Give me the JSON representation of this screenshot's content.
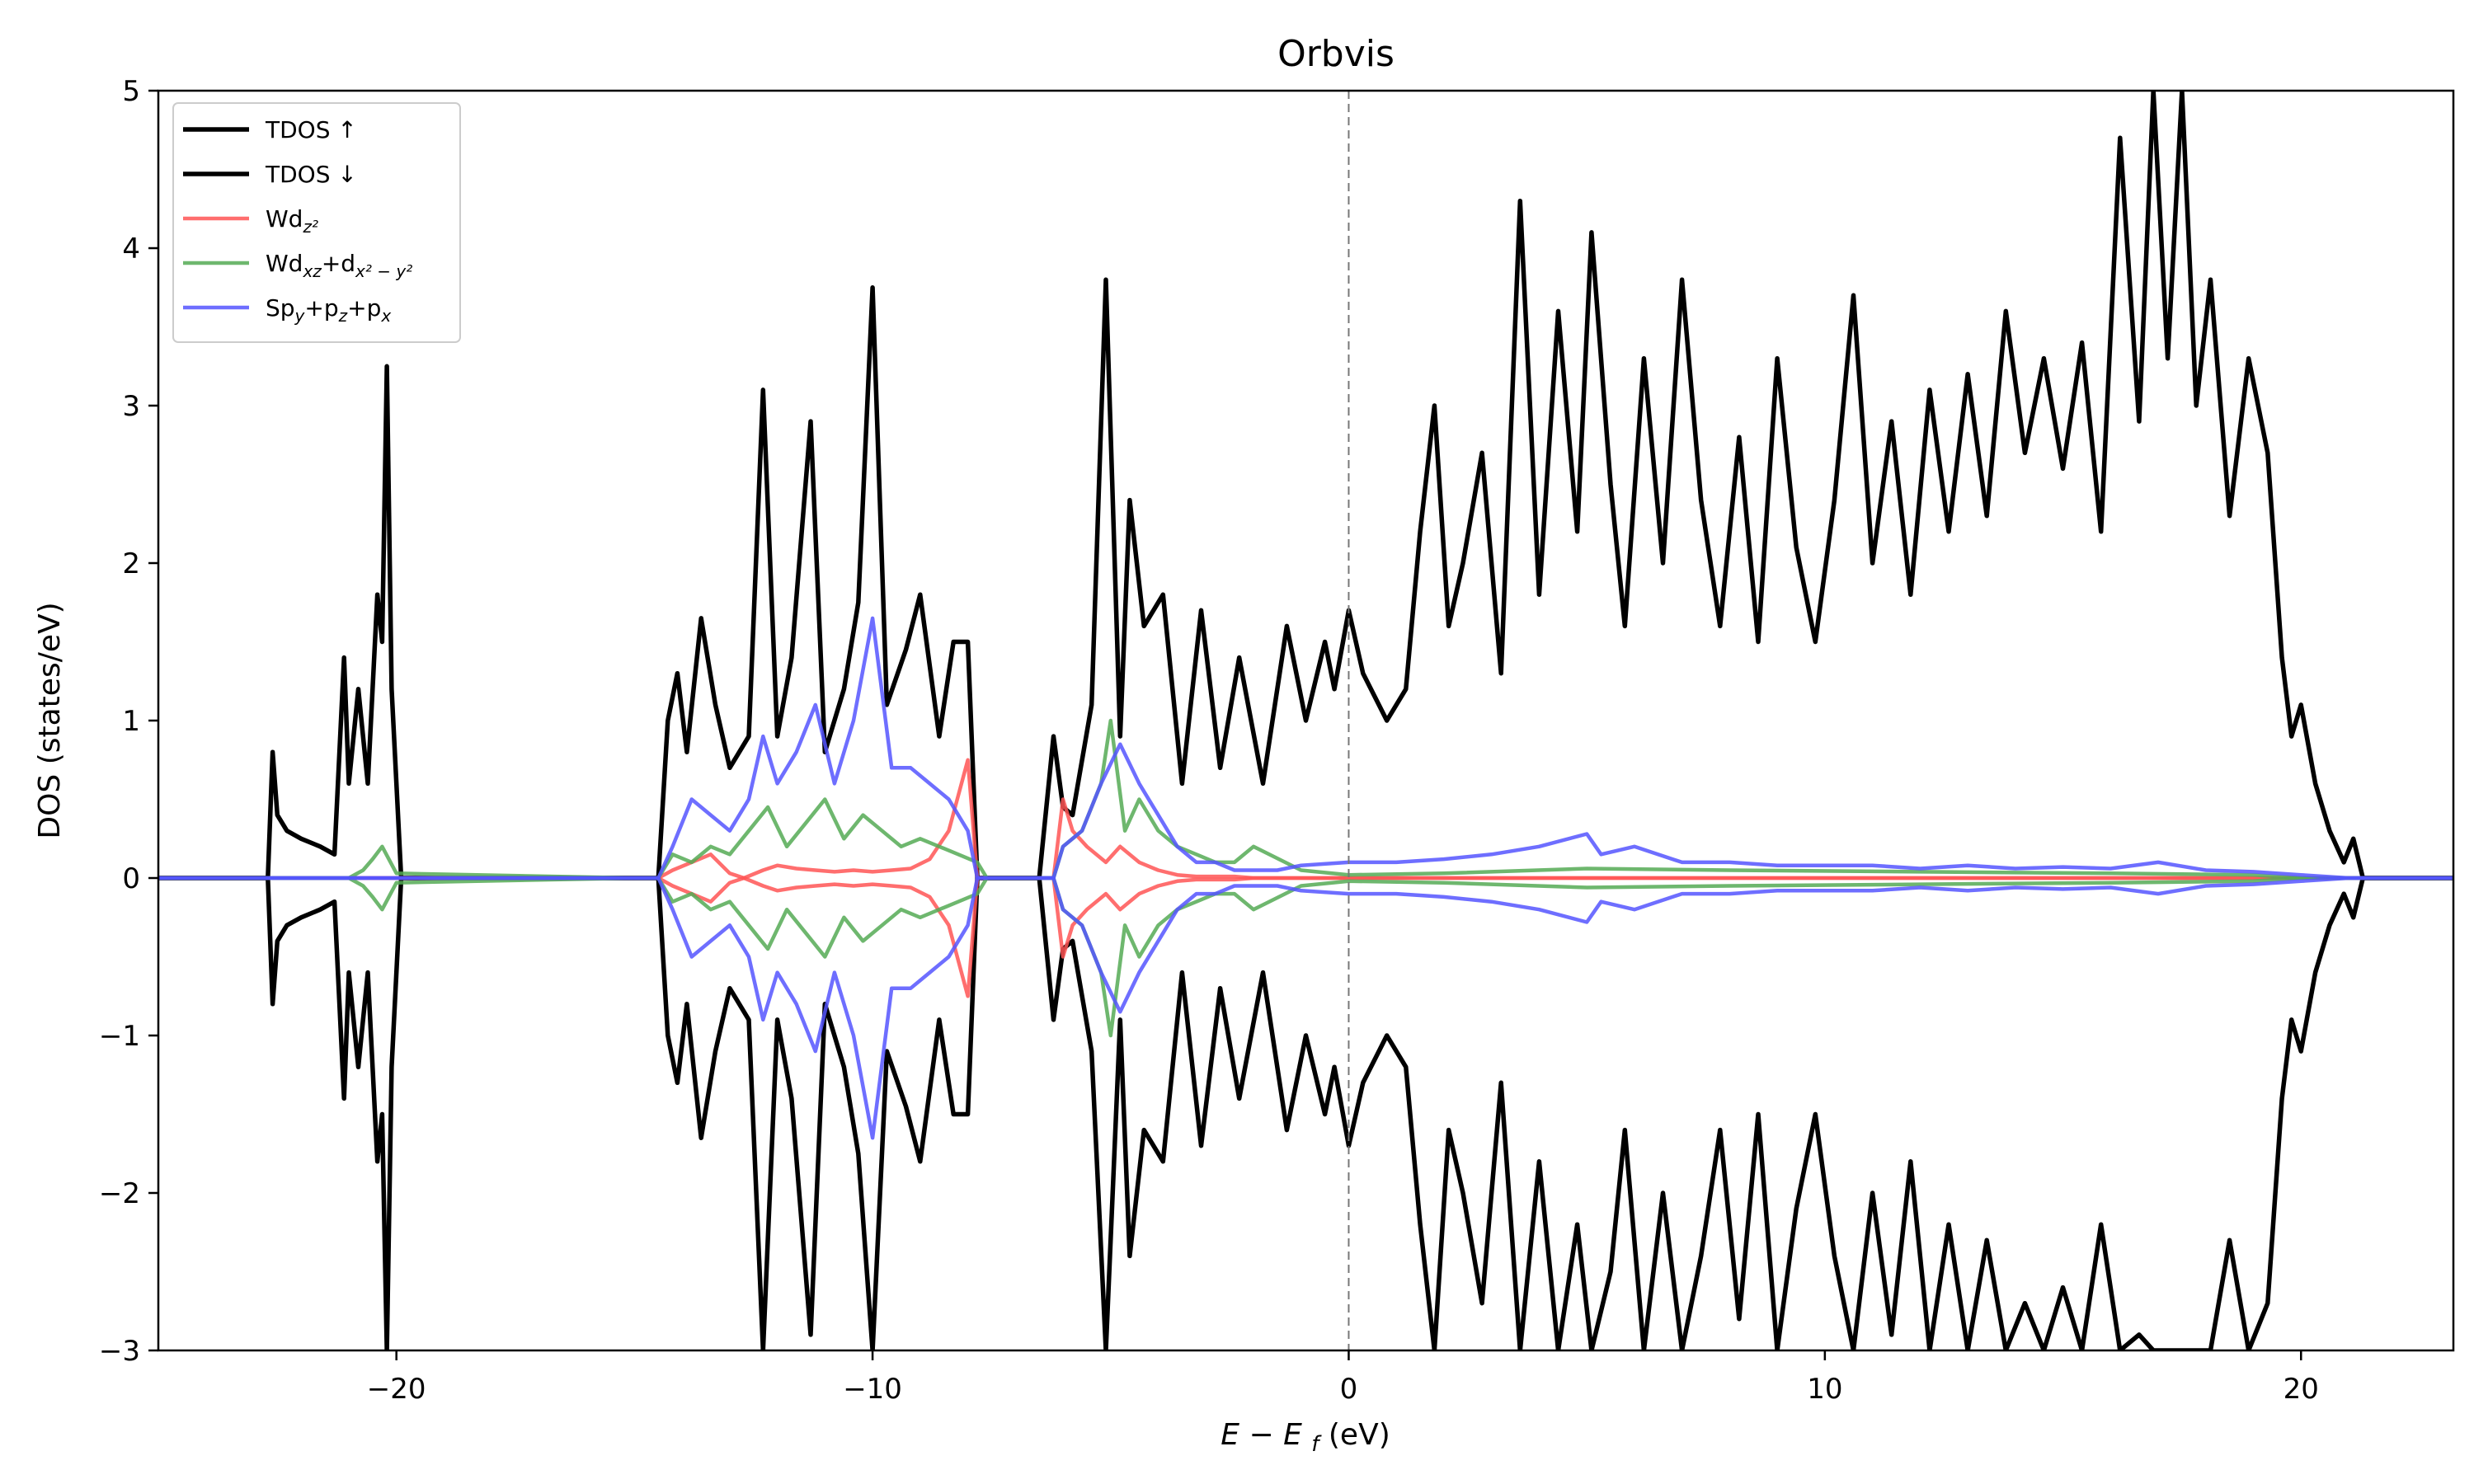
{
  "chart_data": {
    "type": "line",
    "title": "Orbvis",
    "xlabel": "E − E_f (eV)",
    "ylabel": "DOS (states/eV)",
    "xlim": [
      -25,
      23.2
    ],
    "ylim": [
      -3,
      5
    ],
    "xticks": [
      -20,
      -10,
      0,
      10,
      20
    ],
    "xtick_labels": [
      "−20",
      "−10",
      "0",
      "10",
      "20"
    ],
    "yticks": [
      -3,
      -2,
      -1,
      0,
      1,
      2,
      3,
      4,
      5
    ],
    "ytick_labels": [
      "−3",
      "−2",
      "−1",
      "0",
      "1",
      "2",
      "3",
      "4",
      "5"
    ],
    "fermi_line_x": 0,
    "grid": false,
    "legend_position": "top-left",
    "colors": {
      "tdos": "#000000",
      "w_dz2": "#ff5555",
      "w_dxz_dx2y2": "#55aa55",
      "s_p": "#5555ff",
      "fermi_line": "#777777"
    },
    "series": [
      {
        "name": "TDOS ↑",
        "color": "#000000",
        "x": [
          -25,
          -22.7,
          -22.6,
          -22.5,
          -22.3,
          -22.0,
          -21.6,
          -21.3,
          -21.1,
          -21.0,
          -20.8,
          -20.6,
          -20.4,
          -20.3,
          -20.2,
          -20.1,
          -19.9,
          -19.7,
          -15.0,
          -14.5,
          -14.3,
          -14.1,
          -13.9,
          -13.6,
          -13.3,
          -13.0,
          -12.6,
          -12.3,
          -12.0,
          -11.7,
          -11.3,
          -11.0,
          -10.6,
          -10.3,
          -10.0,
          -9.7,
          -9.3,
          -9.0,
          -8.6,
          -8.3,
          -8.0,
          -7.8,
          -7.6,
          -6.5,
          -6.2,
          -6.0,
          -5.8,
          -5.4,
          -5.1,
          -4.8,
          -4.6,
          -4.3,
          -3.9,
          -3.5,
          -3.1,
          -2.7,
          -2.3,
          -1.8,
          -1.3,
          -0.9,
          -0.5,
          -0.3,
          0.0,
          0.3,
          0.8,
          1.2,
          1.5,
          1.8,
          2.1,
          2.4,
          2.8,
          3.2,
          3.6,
          4.0,
          4.4,
          4.8,
          5.1,
          5.5,
          5.8,
          6.2,
          6.6,
          7.0,
          7.4,
          7.8,
          8.2,
          8.6,
          9.0,
          9.4,
          9.8,
          10.2,
          10.6,
          11.0,
          11.4,
          11.8,
          12.2,
          12.6,
          13.0,
          13.4,
          13.8,
          14.2,
          14.6,
          15.0,
          15.4,
          15.8,
          16.2,
          16.6,
          16.9,
          17.2,
          17.5,
          17.8,
          18.1,
          18.5,
          18.9,
          19.3,
          19.6,
          19.8,
          20.0,
          20.3,
          20.6,
          20.9,
          21.1,
          21.3,
          23.2
        ],
        "y": [
          0,
          0,
          0.8,
          0.4,
          0.3,
          0.25,
          0.2,
          0.15,
          1.4,
          0.6,
          1.2,
          0.6,
          1.8,
          1.5,
          3.25,
          1.2,
          0,
          0,
          0,
          0,
          1.0,
          1.3,
          0.8,
          1.65,
          1.1,
          0.7,
          0.9,
          3.1,
          0.9,
          1.4,
          2.9,
          0.8,
          1.2,
          1.75,
          3.75,
          1.1,
          1.45,
          1.8,
          0.9,
          1.5,
          1.5,
          0,
          0,
          0,
          0.9,
          0.45,
          0.4,
          1.1,
          3.8,
          0.9,
          2.4,
          1.6,
          1.8,
          0.6,
          1.7,
          0.7,
          1.4,
          0.6,
          1.6,
          1.0,
          1.5,
          1.2,
          1.7,
          1.3,
          1.0,
          1.2,
          2.2,
          3.0,
          1.6,
          2.0,
          2.7,
          1.3,
          4.3,
          1.8,
          3.6,
          2.2,
          4.1,
          2.5,
          1.6,
          3.3,
          2.0,
          3.8,
          2.4,
          1.6,
          2.8,
          1.5,
          3.3,
          2.1,
          1.5,
          2.4,
          3.7,
          2.0,
          2.9,
          1.8,
          3.1,
          2.2,
          3.2,
          2.3,
          3.6,
          2.7,
          3.3,
          2.6,
          3.4,
          2.2,
          4.7,
          2.9,
          5.0,
          3.3,
          5.0,
          3.0,
          3.8,
          2.3,
          3.3,
          2.7,
          1.4,
          0.9,
          1.1,
          0.6,
          0.3,
          0.1,
          0.25,
          0,
          0
        ]
      },
      {
        "name": "TDOS ↓",
        "color": "#000000",
        "x": [
          -25,
          -22.7,
          -22.6,
          -22.5,
          -22.3,
          -22.0,
          -21.6,
          -21.3,
          -21.1,
          -21.0,
          -20.8,
          -20.6,
          -20.4,
          -20.3,
          -20.2,
          -20.1,
          -19.9,
          -19.7,
          -15.0,
          -14.5,
          -14.3,
          -14.1,
          -13.9,
          -13.6,
          -13.3,
          -13.0,
          -12.6,
          -12.3,
          -12.0,
          -11.7,
          -11.3,
          -11.0,
          -10.6,
          -10.3,
          -10.0,
          -9.7,
          -9.3,
          -9.0,
          -8.6,
          -8.3,
          -8.0,
          -7.8,
          -7.6,
          -6.5,
          -6.2,
          -6.0,
          -5.8,
          -5.4,
          -5.1,
          -4.8,
          -4.6,
          -4.3,
          -3.9,
          -3.5,
          -3.1,
          -2.7,
          -2.3,
          -1.8,
          -1.3,
          -0.9,
          -0.5,
          -0.3,
          0.0,
          0.3,
          0.8,
          1.2,
          1.5,
          1.8,
          2.1,
          2.4,
          2.8,
          3.2,
          3.6,
          4.0,
          4.4,
          4.8,
          5.1,
          5.5,
          5.8,
          6.2,
          6.6,
          7.0,
          7.4,
          7.8,
          8.2,
          8.6,
          9.0,
          9.4,
          9.8,
          10.2,
          10.6,
          11.0,
          11.4,
          11.8,
          12.2,
          12.6,
          13.0,
          13.4,
          13.8,
          14.2,
          14.6,
          15.0,
          15.4,
          15.8,
          16.2,
          16.6,
          16.9,
          17.2,
          17.5,
          17.8,
          18.1,
          18.5,
          18.9,
          19.3,
          19.6,
          19.8,
          20.0,
          20.3,
          20.6,
          20.9,
          21.1,
          21.3,
          23.2
        ],
        "y": [
          0,
          0,
          -0.8,
          -0.4,
          -0.3,
          -0.25,
          -0.2,
          -0.15,
          -1.4,
          -0.6,
          -1.2,
          -0.6,
          -1.8,
          -1.5,
          -3.0,
          -1.2,
          0,
          0,
          0,
          0,
          -1.0,
          -1.3,
          -0.8,
          -1.65,
          -1.1,
          -0.7,
          -0.9,
          -3.0,
          -0.9,
          -1.4,
          -2.9,
          -0.8,
          -1.2,
          -1.75,
          -3.0,
          -1.1,
          -1.45,
          -1.8,
          -0.9,
          -1.5,
          -1.5,
          0,
          0,
          0,
          -0.9,
          -0.45,
          -0.4,
          -1.1,
          -3.0,
          -0.9,
          -2.4,
          -1.6,
          -1.8,
          -0.6,
          -1.7,
          -0.7,
          -1.4,
          -0.6,
          -1.6,
          -1.0,
          -1.5,
          -1.2,
          -1.7,
          -1.3,
          -1.0,
          -1.2,
          -2.2,
          -3.0,
          -1.6,
          -2.0,
          -2.7,
          -1.3,
          -3.0,
          -1.8,
          -3.0,
          -2.2,
          -3.0,
          -2.5,
          -1.6,
          -3.0,
          -2.0,
          -3.0,
          -2.4,
          -1.6,
          -2.8,
          -1.5,
          -3.0,
          -2.1,
          -1.5,
          -2.4,
          -3.0,
          -2.0,
          -2.9,
          -1.8,
          -3.0,
          -2.2,
          -3.0,
          -2.3,
          -3.0,
          -2.7,
          -3.0,
          -2.6,
          -3.0,
          -2.2,
          -3.0,
          -2.9,
          -3.0,
          -3.0,
          -3.0,
          -3.0,
          -3.0,
          -2.3,
          -3.0,
          -2.7,
          -1.4,
          -0.9,
          -1.1,
          -0.6,
          -0.3,
          -0.1,
          -0.25,
          0,
          0
        ]
      },
      {
        "name": "Wd_{z²}",
        "color": "#ff5555",
        "x": [
          -25,
          -14.5,
          -14.2,
          -13.8,
          -13.4,
          -13.0,
          -12.7,
          -12.3,
          -12.0,
          -11.6,
          -11.2,
          -10.8,
          -10.4,
          -10.0,
          -9.6,
          -9.2,
          -8.8,
          -8.4,
          -8.0,
          -7.8,
          -7.6,
          -6.2,
          -6.0,
          -5.8,
          -5.5,
          -5.1,
          -4.8,
          -4.4,
          -4.0,
          -3.6,
          -3.2,
          -2.8,
          -2.4,
          -2.0,
          23.2
        ],
        "y": [
          0,
          0,
          0.05,
          0.1,
          0.15,
          0.03,
          0.0,
          0.05,
          0.08,
          0.06,
          0.05,
          0.04,
          0.05,
          0.04,
          0.05,
          0.06,
          0.12,
          0.3,
          0.75,
          0,
          0,
          0,
          0.5,
          0.3,
          0.2,
          0.1,
          0.2,
          0.1,
          0.05,
          0.02,
          0.01,
          0.01,
          0.01,
          0,
          0
        ]
      },
      {
        "name": "Wd_{z²} ↓",
        "color": "#ff5555",
        "x": [
          -25,
          -14.5,
          -14.2,
          -13.8,
          -13.4,
          -13.0,
          -12.7,
          -12.3,
          -12.0,
          -11.6,
          -11.2,
          -10.8,
          -10.4,
          -10.0,
          -9.6,
          -9.2,
          -8.8,
          -8.4,
          -8.0,
          -7.8,
          -7.6,
          -6.2,
          -6.0,
          -5.8,
          -5.5,
          -5.1,
          -4.8,
          -4.4,
          -4.0,
          -3.6,
          -3.2,
          -2.8,
          -2.4,
          -2.0,
          23.2
        ],
        "y": [
          0,
          0,
          -0.05,
          -0.1,
          -0.15,
          -0.03,
          0.0,
          -0.05,
          -0.08,
          -0.06,
          -0.05,
          -0.04,
          -0.05,
          -0.04,
          -0.05,
          -0.06,
          -0.12,
          -0.3,
          -0.75,
          0,
          0,
          0,
          -0.5,
          -0.3,
          -0.2,
          -0.1,
          -0.2,
          -0.1,
          -0.05,
          -0.02,
          -0.01,
          -0.01,
          -0.01,
          0,
          0
        ]
      },
      {
        "name": "Wd_{xz}+d_{x²−y²}",
        "color": "#55aa55",
        "x": [
          -25,
          -21.0,
          -20.7,
          -20.5,
          -20.3,
          -20.0,
          -15.0,
          -14.5,
          -14.2,
          -13.8,
          -13.4,
          -13.0,
          -12.6,
          -12.2,
          -11.8,
          -11.4,
          -11.0,
          -10.6,
          -10.2,
          -9.8,
          -9.4,
          -9.0,
          -8.6,
          -8.2,
          -7.8,
          -7.6,
          -6.2,
          -6.0,
          -5.6,
          -5.2,
          -5.0,
          -4.7,
          -4.4,
          -4.0,
          -3.6,
          -3.2,
          -2.8,
          -2.4,
          -2.0,
          -1.0,
          0.0,
          2.0,
          5.0,
          8.0,
          12.0,
          16.0,
          19.0,
          20.0,
          23.2
        ],
        "y": [
          0,
          0,
          0.05,
          0.12,
          0.2,
          0.03,
          0,
          0,
          0.15,
          0.1,
          0.2,
          0.15,
          0.3,
          0.45,
          0.2,
          0.35,
          0.5,
          0.25,
          0.4,
          0.3,
          0.2,
          0.25,
          0.2,
          0.15,
          0.1,
          0,
          0,
          0.2,
          0.3,
          0.6,
          1.0,
          0.3,
          0.5,
          0.3,
          0.2,
          0.15,
          0.1,
          0.1,
          0.2,
          0.05,
          0.02,
          0.03,
          0.06,
          0.05,
          0.04,
          0.03,
          0.02,
          0,
          0
        ]
      },
      {
        "name": "Wd_{xz}+d_{x²−y²} ↓",
        "color": "#55aa55",
        "x": [
          -25,
          -21.0,
          -20.7,
          -20.5,
          -20.3,
          -20.0,
          -15.0,
          -14.5,
          -14.2,
          -13.8,
          -13.4,
          -13.0,
          -12.6,
          -12.2,
          -11.8,
          -11.4,
          -11.0,
          -10.6,
          -10.2,
          -9.8,
          -9.4,
          -9.0,
          -8.6,
          -8.2,
          -7.8,
          -7.6,
          -6.2,
          -6.0,
          -5.6,
          -5.2,
          -5.0,
          -4.7,
          -4.4,
          -4.0,
          -3.6,
          -3.2,
          -2.8,
          -2.4,
          -2.0,
          -1.0,
          0.0,
          2.0,
          5.0,
          8.0,
          12.0,
          16.0,
          19.0,
          20.0,
          23.2
        ],
        "y": [
          0,
          0,
          -0.05,
          -0.12,
          -0.2,
          -0.03,
          0,
          0,
          -0.15,
          -0.1,
          -0.2,
          -0.15,
          -0.3,
          -0.45,
          -0.2,
          -0.35,
          -0.5,
          -0.25,
          -0.4,
          -0.3,
          -0.2,
          -0.25,
          -0.2,
          -0.15,
          -0.1,
          0,
          0,
          -0.2,
          -0.3,
          -0.6,
          -1.0,
          -0.3,
          -0.5,
          -0.3,
          -0.2,
          -0.15,
          -0.1,
          -0.1,
          -0.2,
          -0.05,
          -0.02,
          -0.03,
          -0.06,
          -0.05,
          -0.04,
          -0.03,
          -0.02,
          0,
          0
        ]
      },
      {
        "name": "Sp_y+p_z+p_x",
        "color": "#5555ff",
        "x": [
          -25,
          -14.5,
          -14.2,
          -13.8,
          -13.4,
          -13.0,
          -12.6,
          -12.3,
          -12.0,
          -11.6,
          -11.2,
          -10.8,
          -10.4,
          -10.0,
          -9.6,
          -9.2,
          -8.8,
          -8.4,
          -8.0,
          -7.8,
          -7.6,
          -6.2,
          -6.0,
          -5.6,
          -5.2,
          -4.8,
          -4.4,
          -4.0,
          -3.6,
          -3.2,
          -2.8,
          -2.4,
          -2.0,
          -1.5,
          -1.0,
          0.0,
          1.0,
          2.0,
          3.0,
          4.0,
          5.0,
          5.3,
          6.0,
          7.0,
          8.0,
          9.0,
          10.0,
          11.0,
          12.0,
          13.0,
          14.0,
          15.0,
          16.0,
          17.0,
          18.0,
          19.0,
          20.0,
          21.0,
          23.2
        ],
        "y": [
          0,
          0,
          0.2,
          0.5,
          0.4,
          0.3,
          0.5,
          0.9,
          0.6,
          0.8,
          1.1,
          0.6,
          1.0,
          1.65,
          0.7,
          0.7,
          0.6,
          0.5,
          0.3,
          0,
          0,
          0,
          0.2,
          0.3,
          0.6,
          0.85,
          0.6,
          0.4,
          0.2,
          0.1,
          0.1,
          0.05,
          0.05,
          0.05,
          0.08,
          0.1,
          0.1,
          0.12,
          0.15,
          0.2,
          0.28,
          0.15,
          0.2,
          0.1,
          0.1,
          0.08,
          0.08,
          0.08,
          0.06,
          0.08,
          0.06,
          0.07,
          0.06,
          0.1,
          0.05,
          0.04,
          0.02,
          0,
          0
        ]
      },
      {
        "name": "Sp_y+p_z+p_x ↓",
        "color": "#5555ff",
        "x": [
          -25,
          -14.5,
          -14.2,
          -13.8,
          -13.4,
          -13.0,
          -12.6,
          -12.3,
          -12.0,
          -11.6,
          -11.2,
          -10.8,
          -10.4,
          -10.0,
          -9.6,
          -9.2,
          -8.8,
          -8.4,
          -8.0,
          -7.8,
          -7.6,
          -6.2,
          -6.0,
          -5.6,
          -5.2,
          -4.8,
          -4.4,
          -4.0,
          -3.6,
          -3.2,
          -2.8,
          -2.4,
          -2.0,
          -1.5,
          -1.0,
          0.0,
          1.0,
          2.0,
          3.0,
          4.0,
          5.0,
          5.3,
          6.0,
          7.0,
          8.0,
          9.0,
          10.0,
          11.0,
          12.0,
          13.0,
          14.0,
          15.0,
          16.0,
          17.0,
          18.0,
          19.0,
          20.0,
          21.0,
          23.2
        ],
        "y": [
          0,
          0,
          -0.2,
          -0.5,
          -0.4,
          -0.3,
          -0.5,
          -0.9,
          -0.6,
          -0.8,
          -1.1,
          -0.6,
          -1.0,
          -1.65,
          -0.7,
          -0.7,
          -0.6,
          -0.5,
          -0.3,
          0,
          0,
          0,
          -0.2,
          -0.3,
          -0.6,
          -0.85,
          -0.6,
          -0.4,
          -0.2,
          -0.1,
          -0.1,
          -0.05,
          -0.05,
          -0.05,
          -0.08,
          -0.1,
          -0.1,
          -0.12,
          -0.15,
          -0.2,
          -0.28,
          -0.15,
          -0.2,
          -0.1,
          -0.1,
          -0.08,
          -0.08,
          -0.08,
          -0.06,
          -0.08,
          -0.06,
          -0.07,
          -0.06,
          -0.1,
          -0.05,
          -0.04,
          -0.02,
          0,
          0
        ]
      }
    ],
    "legend": [
      {
        "label": "TDOS ↑",
        "color": "#000000"
      },
      {
        "label": "TDOS ↓",
        "color": "#000000"
      },
      {
        "label": "Wd",
        "sub": "z²",
        "color": "#ff5555"
      },
      {
        "label": "Wd",
        "sub": "xz",
        "mid": "+d",
        "sub2": "x² − y²",
        "color": "#55aa55"
      },
      {
        "label": "Sp",
        "sub": "y",
        "mid": "+p",
        "sub2": "z",
        "mid2": "+p",
        "sub3": "x",
        "color": "#5555ff"
      }
    ]
  }
}
